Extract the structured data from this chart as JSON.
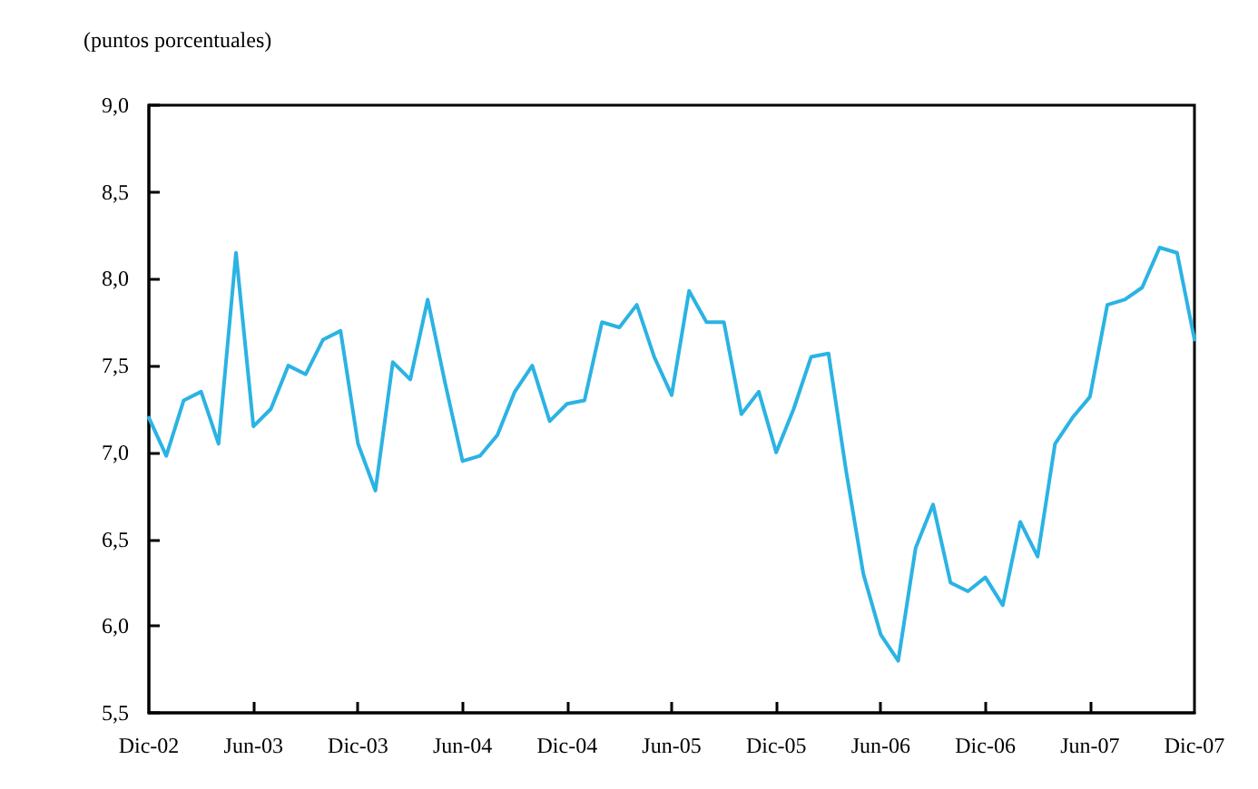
{
  "chart_data": {
    "type": "line",
    "ylabel": "(puntos porcentuales)",
    "categories": [
      "Dic-02",
      null,
      null,
      null,
      null,
      null,
      "Jun-03",
      null,
      null,
      null,
      null,
      null,
      "Dic-03",
      null,
      null,
      null,
      null,
      null,
      "Jun-04",
      null,
      null,
      null,
      null,
      null,
      "Dic-04",
      null,
      null,
      null,
      null,
      null,
      "Jun-05",
      null,
      null,
      null,
      null,
      null,
      "Dic-05",
      null,
      null,
      null,
      null,
      null,
      "Jun-06",
      null,
      null,
      null,
      null,
      null,
      "Dic-06",
      null,
      null,
      null,
      null,
      null,
      "Jun-07",
      null,
      null,
      null,
      null,
      null,
      "Dic-07"
    ],
    "series": [
      {
        "color": "#2bb3e3",
        "values": [
          7.2,
          6.98,
          7.3,
          7.35,
          7.05,
          8.15,
          7.15,
          7.25,
          7.5,
          7.45,
          7.65,
          7.7,
          7.05,
          6.78,
          7.52,
          7.42,
          7.88,
          7.4,
          6.95,
          6.98,
          7.1,
          7.35,
          7.5,
          7.18,
          7.28,
          7.3,
          7.75,
          7.72,
          7.85,
          7.55,
          7.33,
          7.93,
          7.75,
          7.75,
          7.22,
          7.35,
          7.0,
          7.25,
          7.55,
          7.57,
          6.9,
          6.3,
          5.95,
          5.8,
          6.45,
          6.7,
          6.25,
          6.2,
          6.28,
          6.12,
          6.6,
          6.4,
          7.05,
          7.2,
          7.32,
          7.85,
          7.88,
          7.95,
          8.18,
          8.15,
          7.65
        ]
      }
    ],
    "ylim": [
      5.5,
      9.0
    ],
    "yticks": [
      {
        "value": 5.5,
        "label": "5,5"
      },
      {
        "value": 6.0,
        "label": "6,0"
      },
      {
        "value": 6.5,
        "label": "6,5"
      },
      {
        "value": 7.0,
        "label": "7,0"
      },
      {
        "value": 7.5,
        "label": "7,5"
      },
      {
        "value": 8.0,
        "label": "8,0"
      },
      {
        "value": 8.5,
        "label": "8,5"
      },
      {
        "value": 9.0,
        "label": "9,0"
      }
    ],
    "grid": false,
    "marker": "none",
    "line_style": "solid"
  }
}
